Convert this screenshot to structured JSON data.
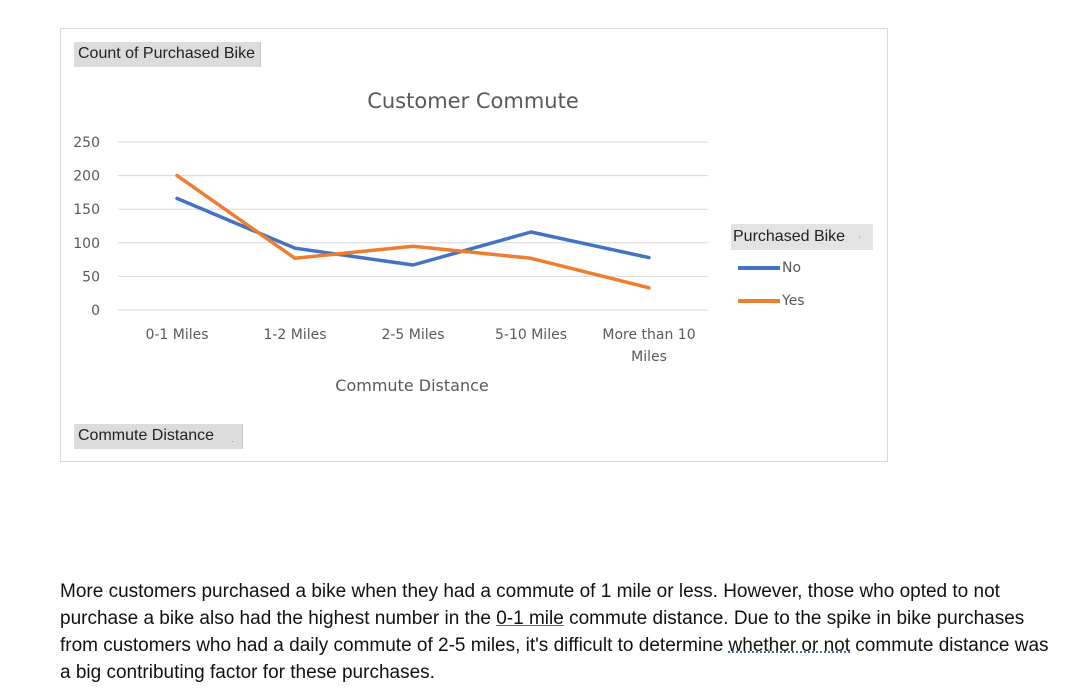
{
  "pivot": {
    "values_field": "Count of Purchased Bike",
    "axis_field": "Commute Distance",
    "legend_field": "Purchased Bike"
  },
  "chart_data": {
    "type": "line",
    "title": "Customer Commute",
    "xlabel": "Commute Distance",
    "ylabel": "",
    "categories": [
      "0-1 Miles",
      "1-2 Miles",
      "2-5 Miles",
      "5-10 Miles",
      "More than 10 Miles"
    ],
    "series": [
      {
        "name": "No",
        "color": "#4472c4",
        "values": [
          166,
          92,
          67,
          116,
          78
        ]
      },
      {
        "name": "Yes",
        "color": "#ed7d31",
        "values": [
          200,
          77,
          95,
          77,
          33
        ]
      }
    ],
    "ylim": [
      0,
      250
    ],
    "yticks": [
      0,
      50,
      100,
      150,
      200,
      250
    ],
    "grid": true,
    "legend": "right"
  },
  "paragraph": {
    "part1": "More customers purchased a bike when they had a commute of 1 mile or less. However, those who opted to not purchase a bike also had the highest number in the ",
    "link1": "0-1 mile",
    "part2": " commute distance. Due to the spike in bike purchases from customers who had a daily commute of 2-5 miles, it's difficult to determine ",
    "link2": "whether or not",
    "part3": " commute distance was a big contributing factor for these purchases."
  }
}
